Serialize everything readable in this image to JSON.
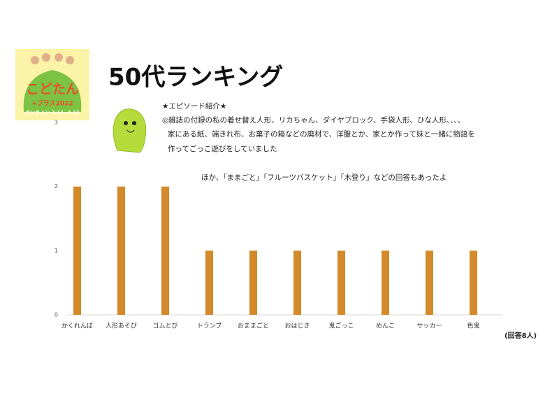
{
  "title": "50代ランキング",
  "logo": {
    "name": "こどたん",
    "subtitle": "+プラス2022",
    "dates": "オンライン 2.14~3.13"
  },
  "episode": {
    "heading": "★エピソード紹介★",
    "lines": [
      "◎雑誌の付録の私の着せ替え人形、リカちゃん、ダイヤブロック、手袋人形、ひな人形、、、、",
      "家にある紙、端きれ布、お菓子の箱などの廃材で、洋服とか、家とか作って妹と一緒に物語を",
      "作ってごっこ遊びをしていました"
    ]
  },
  "note": "ほか、「ままごと」「フルーツバスケット」「木登り」などの回答もあったよ",
  "respondents": "(回答8人)",
  "chart_data": {
    "type": "bar",
    "categories": [
      "かくれんぼ",
      "人形あそび",
      "ゴムとび",
      "トランプ",
      "おままごと",
      "おはじき",
      "鬼ごっこ",
      "めんこ",
      "サッカー",
      "色鬼"
    ],
    "values": [
      2,
      2,
      2,
      1,
      1,
      1,
      1,
      1,
      1,
      1
    ],
    "color": "#d4892a",
    "ylim": [
      0,
      3
    ],
    "yticks": [
      0,
      1,
      2,
      3
    ],
    "grid": false
  }
}
